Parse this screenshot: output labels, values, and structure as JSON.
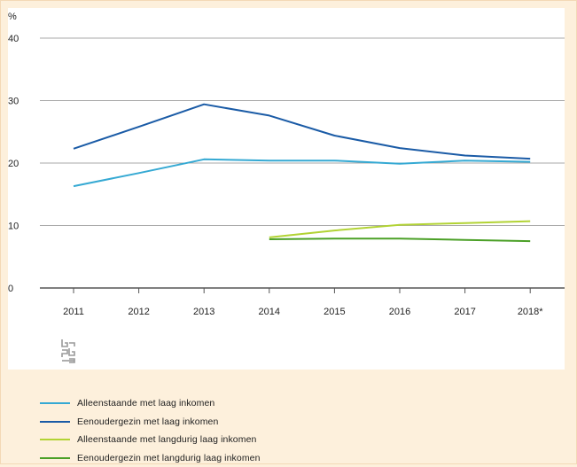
{
  "chart_data": {
    "type": "line",
    "ylabel": "%",
    "ylim": [
      0,
      40
    ],
    "yticks": [
      0,
      10,
      20,
      30,
      40
    ],
    "x": [
      "2011",
      "2012",
      "2013",
      "2014",
      "2015",
      "2016",
      "2017",
      "2018*"
    ],
    "grid": true,
    "legend_position": "bottom-left",
    "series": [
      {
        "name": "Alleenstaande met laag inkomen",
        "color": "#35a9d3",
        "values": [
          16.3,
          18.4,
          20.6,
          20.4,
          20.4,
          19.9,
          20.4,
          20.2
        ]
      },
      {
        "name": "Eenoudergezin met laag inkomen",
        "color": "#1a5ba6",
        "values": [
          22.3,
          25.8,
          29.4,
          27.6,
          24.4,
          22.4,
          21.2,
          20.7
        ]
      },
      {
        "name": "Alleenstaande met langdurig laag inkomen",
        "color": "#b2d334",
        "values": [
          null,
          null,
          null,
          8.1,
          9.2,
          10.1,
          10.4,
          10.7
        ]
      },
      {
        "name": "Eenoudergezin met langdurig laag inkomen",
        "color": "#4ba027",
        "values": [
          null,
          null,
          null,
          7.8,
          7.9,
          7.9,
          7.7,
          7.5
        ]
      }
    ]
  },
  "logo": {
    "icon": "cbs-logo-icon"
  }
}
